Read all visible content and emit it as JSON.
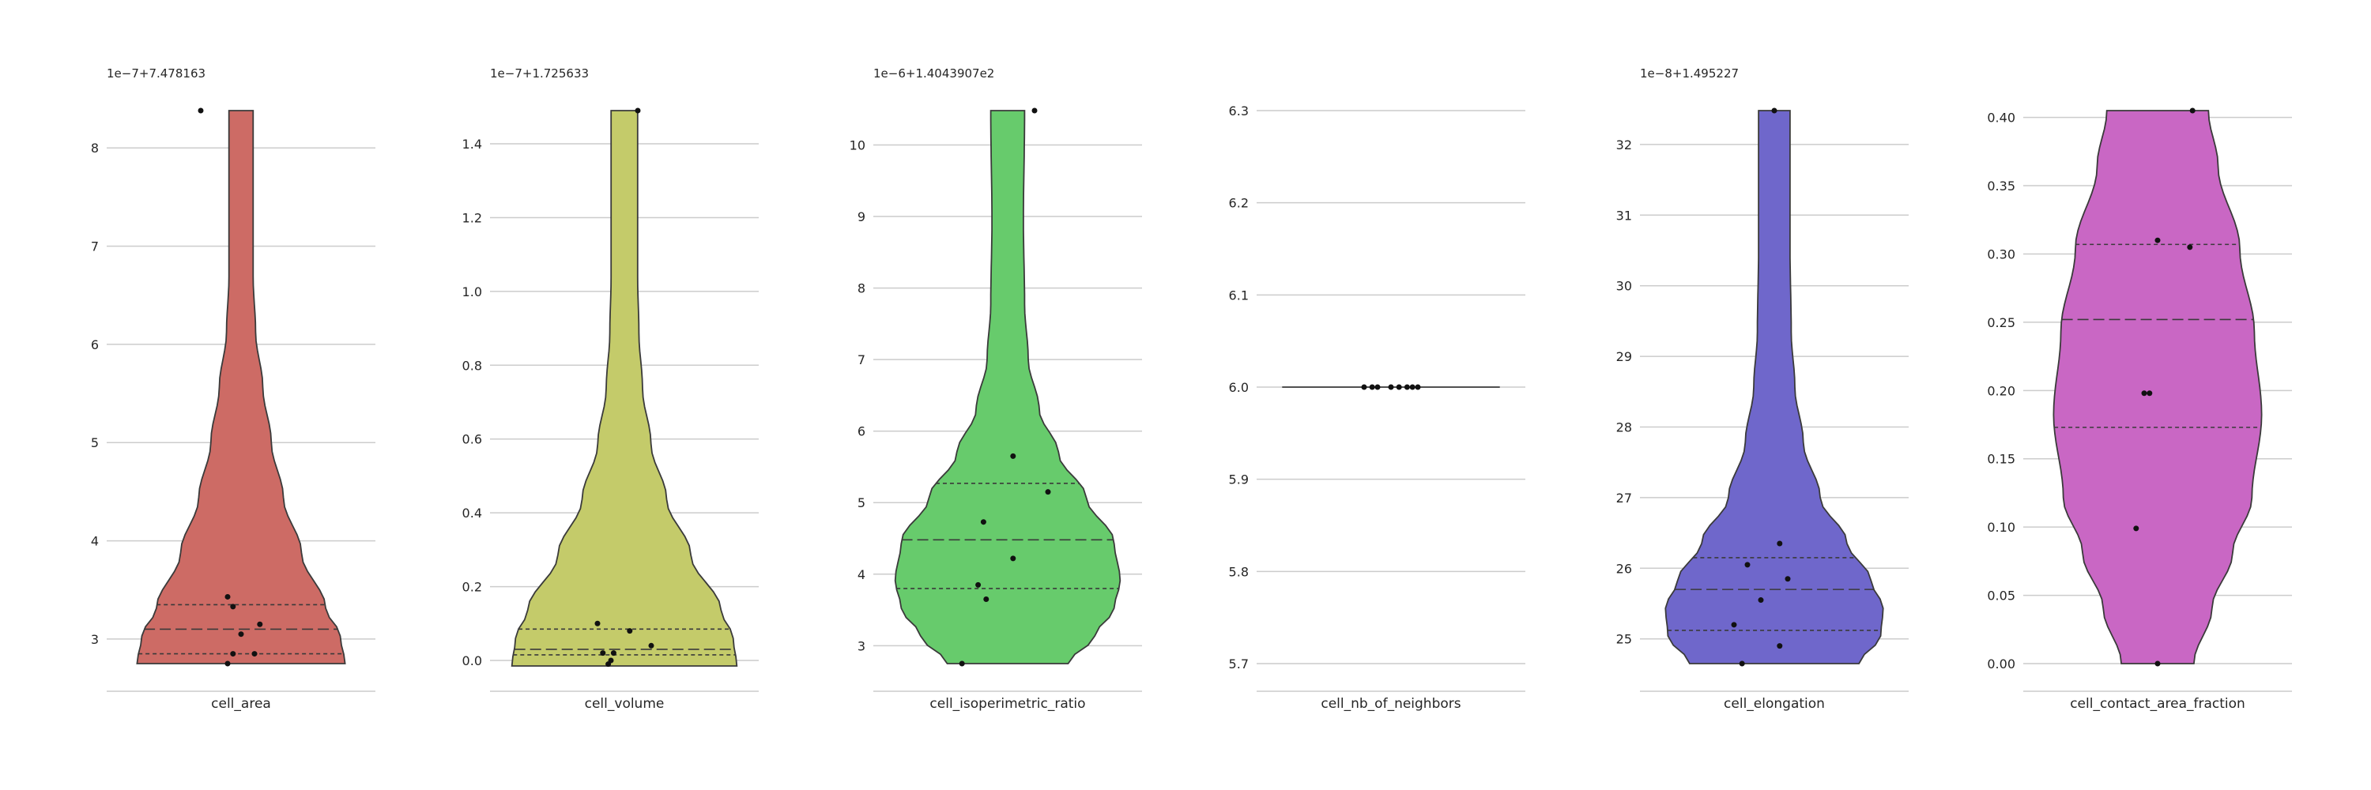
{
  "chart_data": [
    {
      "type": "violin",
      "xlabel": "cell_area",
      "offset_label": "1e−7+7.478163",
      "color": "#cd6b65",
      "yticks": [
        3,
        4,
        5,
        6,
        7,
        8
      ],
      "ylim": [
        2.75,
        8.38
      ],
      "points": [
        2.75,
        2.85,
        2.85,
        3.05,
        3.15,
        3.33,
        3.43,
        8.38
      ],
      "quartiles": {
        "q1": 2.85,
        "median": 3.1,
        "q3": 3.35
      }
    },
    {
      "type": "violin",
      "xlabel": "cell_volume",
      "offset_label": "1e−7+1.725633",
      "color": "#c4cb6a",
      "yticks": [
        0.0,
        0.2,
        0.4,
        0.6,
        0.8,
        1.0,
        1.2,
        1.4
      ],
      "ylim": [
        -0.015,
        1.49
      ],
      "points": [
        -0.01,
        0.0,
        0.02,
        0.02,
        0.04,
        0.08,
        0.1,
        1.49
      ],
      "quartiles": {
        "q1": 0.015,
        "median": 0.03,
        "q3": 0.085
      }
    },
    {
      "type": "violin",
      "xlabel": "cell_isoperimetric_ratio",
      "offset_label": "1e−6+1.4043907e2",
      "color": "#67cb6c",
      "yticks": [
        3,
        4,
        5,
        6,
        7,
        8,
        9,
        10
      ],
      "ylim": [
        2.75,
        10.48
      ],
      "points": [
        2.75,
        3.65,
        3.85,
        4.22,
        4.73,
        5.15,
        5.65,
        10.48
      ],
      "quartiles": {
        "q1": 3.8,
        "median": 4.48,
        "q3": 5.27
      }
    },
    {
      "type": "violin",
      "xlabel": "cell_nb_of_neighbors",
      "offset_label": "",
      "color": "#6a9ec9",
      "yticks": [
        5.7,
        5.8,
        5.9,
        6.0,
        6.1,
        6.2,
        6.3
      ],
      "ylim": [
        5.7,
        6.3
      ],
      "points": [
        6.0,
        6.0,
        6.0,
        6.0,
        6.0,
        6.0,
        6.0,
        6.0
      ],
      "quartiles": {
        "q1": 6.0,
        "median": 6.0,
        "q3": 6.0
      }
    },
    {
      "type": "violin",
      "xlabel": "cell_elongation",
      "offset_label": "1e−8+1.495227",
      "color": "#6f67cb",
      "yticks": [
        25,
        26,
        27,
        28,
        29,
        30,
        31,
        32
      ],
      "ylim": [
        24.65,
        32.48
      ],
      "points": [
        24.65,
        24.9,
        25.2,
        25.55,
        25.85,
        26.05,
        26.35,
        32.48
      ],
      "quartiles": {
        "q1": 25.12,
        "median": 25.7,
        "q3": 26.15
      }
    },
    {
      "type": "violin",
      "xlabel": "cell_contact_area_fraction",
      "offset_label": "",
      "color": "#c967c4",
      "yticks": [
        0.0,
        0.05,
        0.1,
        0.15,
        0.2,
        0.25,
        0.3,
        0.35,
        0.4
      ],
      "ylim": [
        0.0,
        0.405
      ],
      "points": [
        0.0,
        0.099,
        0.198,
        0.198,
        0.305,
        0.31,
        0.405
      ],
      "quartiles": {
        "q1": 0.173,
        "median": 0.252,
        "q3": 0.307
      }
    }
  ]
}
